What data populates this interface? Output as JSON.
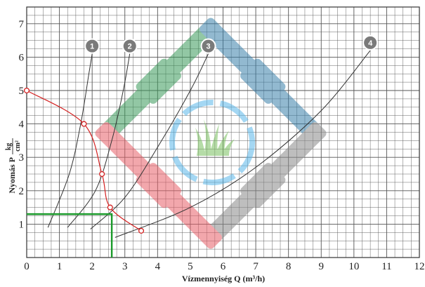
{
  "chart_data": {
    "type": "line",
    "xlabel": "Vízmennyiség  Q (m³/h)",
    "ylabel_prefix": "Nyomás  P",
    "ylabel_unit_num": "kg",
    "ylabel_unit_den": "cm²",
    "xlim": [
      0,
      12
    ],
    "ylim": [
      0,
      7.5
    ],
    "x_ticks": [
      "0",
      "1",
      "2",
      "3",
      "4",
      "5",
      "6",
      "7",
      "8",
      "9",
      "10",
      "11",
      "12"
    ],
    "y_ticks": [
      "1",
      "2",
      "3",
      "4",
      "5",
      "6",
      "7"
    ],
    "grid": true,
    "colors": {
      "grid": "#555555",
      "pump_curve": "#d42020",
      "pipe_curves": "#333333",
      "operating_point": "#1a9a2a",
      "badge": "#7a7a7a"
    },
    "pump_curve": {
      "points": [
        {
          "x": 0,
          "y": 5.0
        },
        {
          "x": 1.75,
          "y": 4.0
        },
        {
          "x": 2.3,
          "y": 2.5
        },
        {
          "x": 2.55,
          "y": 1.5
        },
        {
          "x": 3.5,
          "y": 0.8
        }
      ]
    },
    "pipe_curves": [
      {
        "label": "1",
        "points": [
          {
            "x": 0.65,
            "y": 0.9
          },
          {
            "x": 1.3,
            "y": 2.5
          },
          {
            "x": 1.65,
            "y": 4.0
          },
          {
            "x": 1.9,
            "y": 5.5
          },
          {
            "x": 2.0,
            "y": 6.1
          }
        ]
      },
      {
        "label": "2",
        "points": [
          {
            "x": 1.25,
            "y": 0.9
          },
          {
            "x": 2.1,
            "y": 2.0
          },
          {
            "x": 2.6,
            "y": 3.5
          },
          {
            "x": 2.95,
            "y": 5.0
          },
          {
            "x": 3.15,
            "y": 6.1
          }
        ]
      },
      {
        "label": "3",
        "points": [
          {
            "x": 1.95,
            "y": 0.85
          },
          {
            "x": 3.0,
            "y": 1.8
          },
          {
            "x": 4.0,
            "y": 3.3
          },
          {
            "x": 5.0,
            "y": 5.0
          },
          {
            "x": 5.55,
            "y": 6.1
          }
        ]
      },
      {
        "label": "4",
        "points": [
          {
            "x": 2.7,
            "y": 0.6
          },
          {
            "x": 5.0,
            "y": 1.5
          },
          {
            "x": 7.0,
            "y": 2.7
          },
          {
            "x": 9.0,
            "y": 4.4
          },
          {
            "x": 10.5,
            "y": 6.2
          }
        ]
      }
    ],
    "operating_point": {
      "x": 2.6,
      "y": 1.3
    }
  }
}
